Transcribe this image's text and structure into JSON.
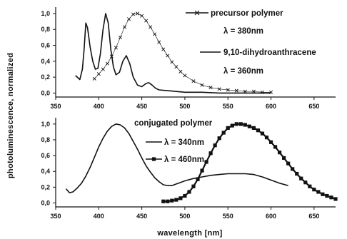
{
  "ylabel": "photoluminescence, normalized",
  "xlabel": "wavelength [nm]",
  "chart_data": [
    {
      "type": "line",
      "xlim": [
        350,
        675
      ],
      "ylim": [
        -0.05,
        1.08
      ],
      "xticks": [
        "350",
        "400",
        "450",
        "500",
        "550",
        "600",
        "650"
      ],
      "yticks": [
        "0,0",
        "0,2",
        "0,4",
        "0,6",
        "0,8",
        "1,0"
      ],
      "legend": [
        {
          "label": "precursor polymer",
          "marker": "cross-line"
        },
        {
          "label": "λ = 380nm"
        },
        {
          "label": "9,10-dihydroanthracene",
          "marker": "line"
        },
        {
          "label": "λ = 360nm"
        }
      ],
      "series": [
        {
          "label_ref": 0,
          "style": "cross",
          "x": [
            395,
            400,
            405,
            410,
            415,
            420,
            425,
            430,
            435,
            440,
            445,
            450,
            455,
            460,
            465,
            470,
            475,
            480,
            485,
            490,
            495,
            500,
            510,
            520,
            530,
            540,
            550,
            560,
            570,
            580,
            590,
            600
          ],
          "y": [
            0.18,
            0.24,
            0.3,
            0.37,
            0.46,
            0.57,
            0.7,
            0.83,
            0.93,
            0.99,
            1.0,
            0.97,
            0.91,
            0.83,
            0.74,
            0.64,
            0.55,
            0.47,
            0.39,
            0.33,
            0.27,
            0.22,
            0.15,
            0.1,
            0.07,
            0.05,
            0.04,
            0.03,
            0.02,
            0.02,
            0.01,
            0.01
          ]
        },
        {
          "label_ref": 2,
          "style": "line",
          "x": [
            373,
            378,
            381,
            383,
            385,
            387,
            390,
            393,
            396,
            399,
            402,
            405,
            408,
            411,
            414,
            417,
            420,
            424,
            428,
            432,
            436,
            440,
            445,
            450,
            455,
            458,
            462,
            466,
            470,
            480,
            490,
            500,
            520,
            540,
            560,
            580,
            600
          ],
          "y": [
            0.22,
            0.17,
            0.3,
            0.55,
            0.88,
            0.82,
            0.58,
            0.4,
            0.3,
            0.31,
            0.5,
            0.8,
            1.0,
            0.88,
            0.55,
            0.33,
            0.23,
            0.26,
            0.4,
            0.47,
            0.37,
            0.2,
            0.1,
            0.08,
            0.12,
            0.13,
            0.1,
            0.06,
            0.04,
            0.03,
            0.02,
            0.01,
            0.01,
            0.0,
            0.0,
            0.0,
            0.0
          ]
        }
      ]
    },
    {
      "type": "line",
      "xlim": [
        350,
        675
      ],
      "ylim": [
        -0.05,
        1.08
      ],
      "xticks": [
        "350",
        "400",
        "450",
        "500",
        "550",
        "600",
        "650"
      ],
      "yticks": [
        "0,0",
        "0,2",
        "0,4",
        "0,6",
        "0,8",
        "1,0"
      ],
      "legend": [
        {
          "label": "conjugated polymer"
        },
        {
          "label": "λ = 340nm",
          "marker": "line"
        },
        {
          "label": "λ = 460nm",
          "marker": "square"
        }
      ],
      "series": [
        {
          "label_ref": 1,
          "style": "line",
          "x": [
            362,
            366,
            370,
            375,
            380,
            385,
            390,
            395,
            400,
            405,
            410,
            415,
            420,
            425,
            430,
            435,
            440,
            445,
            450,
            455,
            460,
            465,
            470,
            475,
            480,
            485,
            490,
            495,
            500,
            510,
            520,
            530,
            540,
            550,
            560,
            570,
            580,
            590,
            600,
            610,
            620
          ],
          "y": [
            0.18,
            0.13,
            0.14,
            0.19,
            0.25,
            0.34,
            0.45,
            0.58,
            0.71,
            0.82,
            0.91,
            0.97,
            1.0,
            0.99,
            0.95,
            0.88,
            0.78,
            0.68,
            0.57,
            0.47,
            0.39,
            0.32,
            0.27,
            0.23,
            0.22,
            0.22,
            0.24,
            0.26,
            0.28,
            0.31,
            0.33,
            0.35,
            0.36,
            0.37,
            0.37,
            0.37,
            0.36,
            0.33,
            0.29,
            0.25,
            0.22
          ]
        },
        {
          "label_ref": 2,
          "style": "square",
          "x": [
            475,
            480,
            485,
            490,
            495,
            500,
            505,
            510,
            515,
            520,
            525,
            530,
            535,
            540,
            545,
            550,
            555,
            560,
            565,
            570,
            575,
            580,
            585,
            590,
            595,
            600,
            605,
            610,
            615,
            620,
            625,
            630,
            635,
            640,
            645,
            650,
            655,
            660,
            665,
            670,
            675
          ],
          "y": [
            0.02,
            0.02,
            0.03,
            0.04,
            0.06,
            0.09,
            0.14,
            0.21,
            0.3,
            0.41,
            0.52,
            0.63,
            0.73,
            0.82,
            0.89,
            0.95,
            0.98,
            1.0,
            1.0,
            0.99,
            0.97,
            0.95,
            0.92,
            0.88,
            0.83,
            0.77,
            0.71,
            0.64,
            0.57,
            0.5,
            0.43,
            0.37,
            0.31,
            0.26,
            0.21,
            0.17,
            0.14,
            0.11,
            0.09,
            0.07,
            0.05
          ]
        }
      ]
    }
  ]
}
